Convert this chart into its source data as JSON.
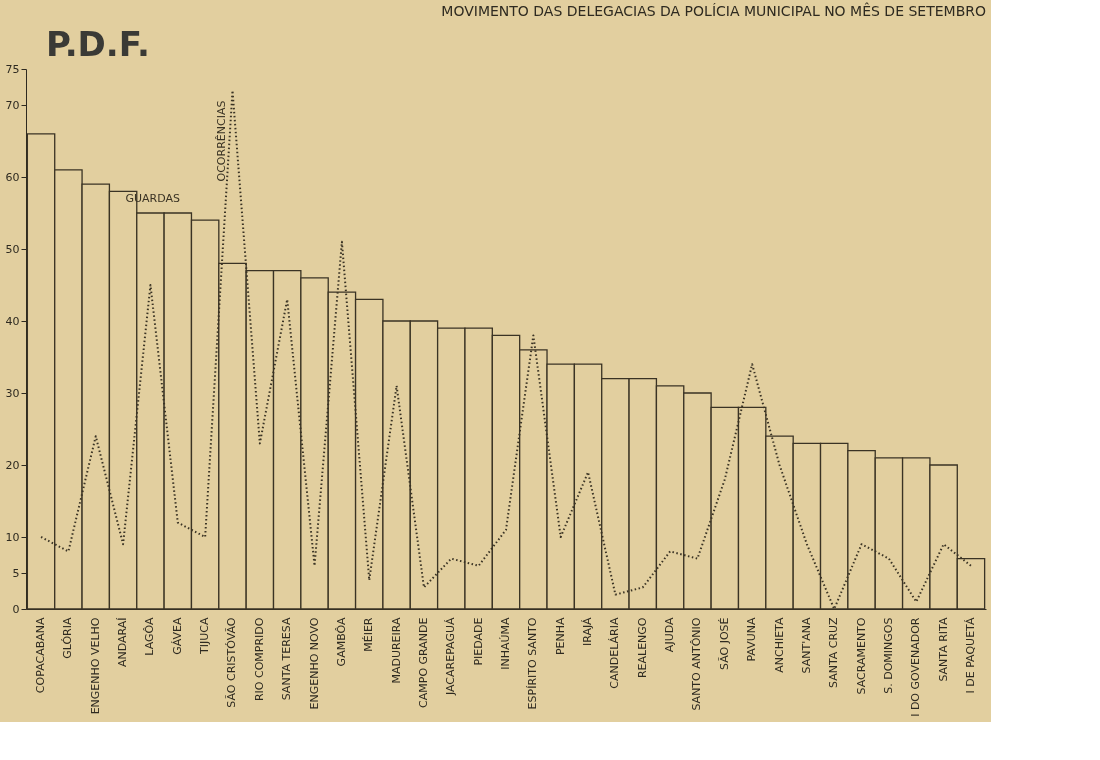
{
  "chart_data": {
    "type": "bar",
    "title": "MOVIMENTO DAS DELEGACIAS DA POLÍCIA MUNICIPAL NO MÊS DE SETEMBRO",
    "annotations": [
      "P.D.F."
    ],
    "categories": [
      "COPACABANA",
      "GLÓRIA",
      "ENGENHO VELHO",
      "ANDARAÍ",
      "LAGÔA",
      "GÁVEA",
      "TIJUCA",
      "SÃO CRISTÓVÃO",
      "RIO COMPRIDO",
      "SANTA TERESA",
      "ENGENHO NOVO",
      "GAMBÔA",
      "MÉIER",
      "MADUREIRA",
      "CAMPO GRANDE",
      "JACAREPAGUÁ",
      "PIEDADE",
      "INHAÚMA",
      "ESPÍRITO SANTO",
      "PENHA",
      "IRAJÁ",
      "CANDELÁRIA",
      "REALENGO",
      "AJUDA",
      "SANTO ANTÔNIO",
      "SÃO JOSÉ",
      "PAVUNA",
      "ANCHIETA",
      "SANT'ANA",
      "SANTA CRUZ",
      "SACRAMENTO",
      "S. DOMINGOS",
      "I DO GOVENADOR",
      "SANTA RITA",
      "I DE PAQUETÁ"
    ],
    "series": [
      {
        "name": "GUARDAS",
        "color": "#3a3324",
        "values": [
          66,
          61,
          59,
          58,
          55,
          55,
          54,
          48,
          47,
          47,
          46,
          44,
          43,
          40,
          40,
          39,
          39,
          38,
          36,
          34,
          34,
          32,
          32,
          31,
          30,
          28,
          28,
          24,
          23,
          23,
          22,
          21,
          21,
          20,
          7
        ]
      },
      {
        "name": "OCORRÊNCIAS",
        "type": "line",
        "line_style": "dotted",
        "color": "#3a3324",
        "values": [
          10,
          8,
          24,
          9,
          45,
          12,
          10,
          72,
          23,
          43,
          6,
          51,
          4,
          31,
          3,
          7,
          6,
          11,
          38,
          10,
          19,
          2,
          3,
          8,
          7,
          18,
          34,
          20,
          9,
          0,
          9,
          7,
          1,
          9,
          6
        ]
      }
    ],
    "ylim": [
      0,
      75
    ],
    "yticks": [
      0,
      5,
      10,
      20,
      30,
      40,
      50,
      60,
      70,
      75
    ],
    "grid": false,
    "legend": false,
    "marker": "none"
  }
}
